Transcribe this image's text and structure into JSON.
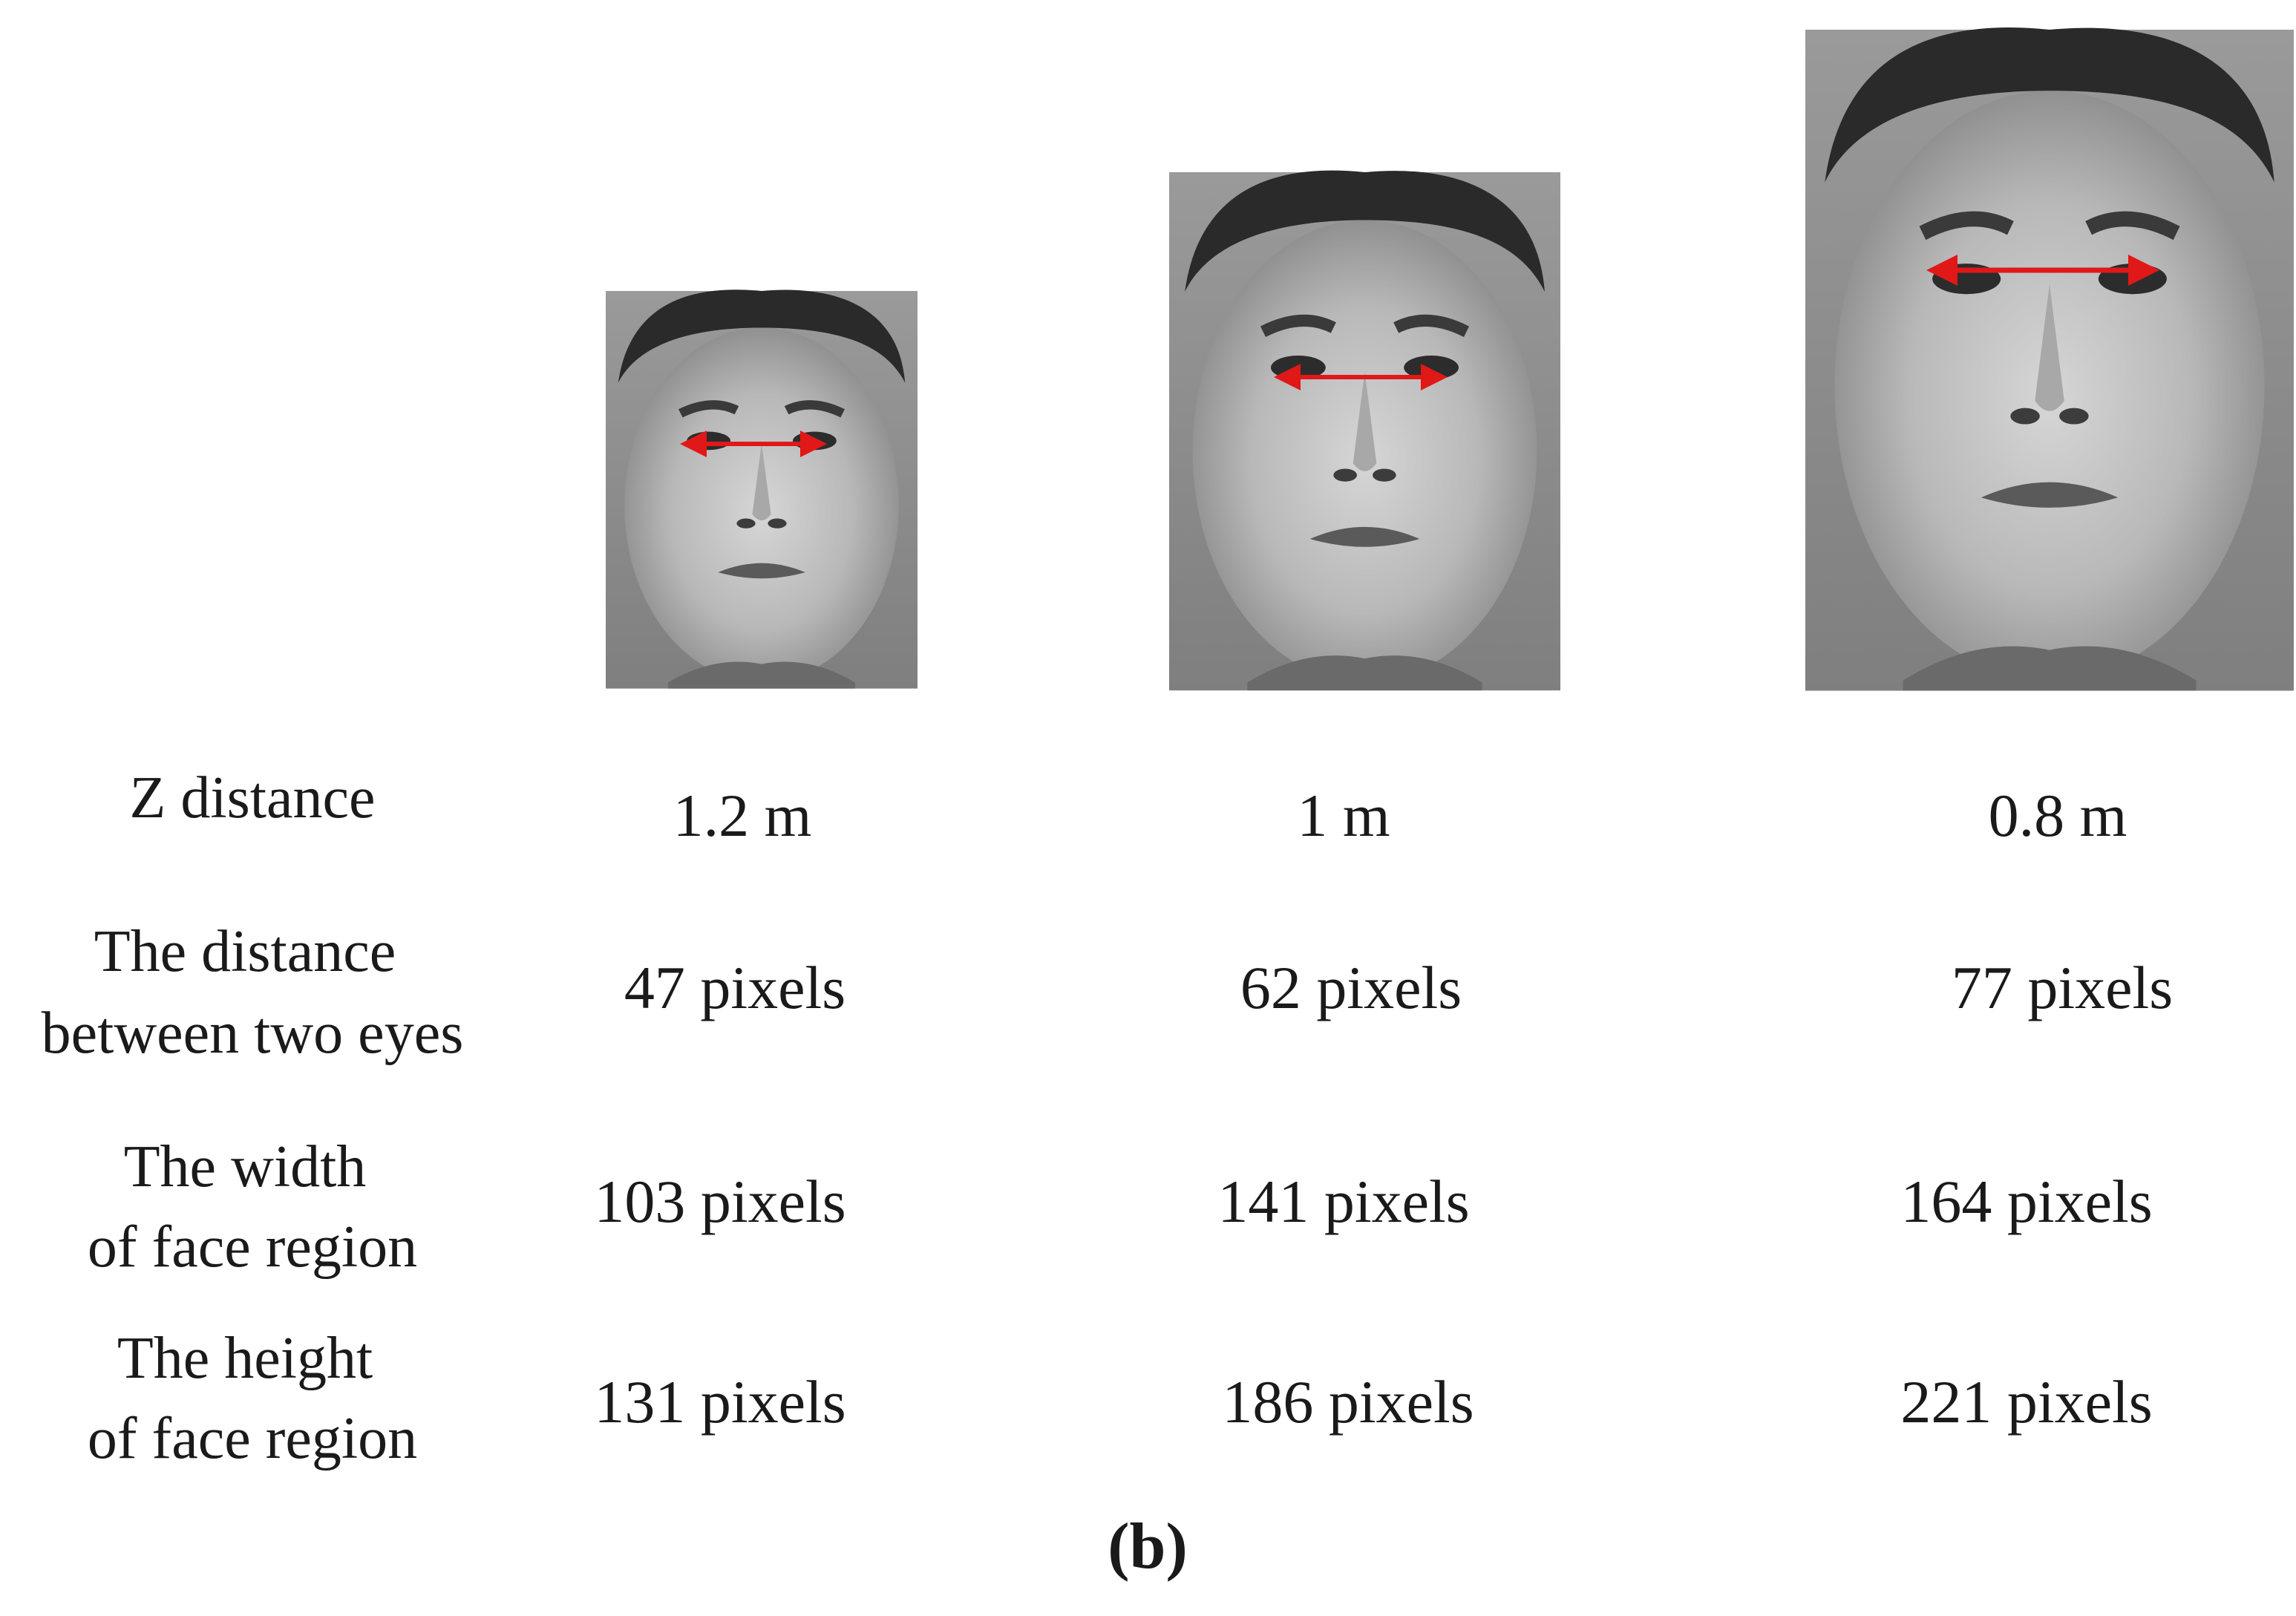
{
  "figure": {
    "panel_label": "(b)",
    "row_labels": {
      "z_distance": "Z distance",
      "eye_distance_line1": "The distance",
      "eye_distance_line2": "between two eyes",
      "face_width_line1": "The width",
      "face_width_line2": "of face region",
      "face_height_line1": "The height",
      "face_height_line2": "of face region"
    },
    "columns": [
      {
        "z": "1.2 m",
        "eye_distance": "47 pixels",
        "face_width": "103 pixels",
        "face_height": "131 pixels"
      },
      {
        "z": "1 m",
        "eye_distance": "62 pixels",
        "face_width": "141 pixels",
        "face_height": "186 pixels"
      },
      {
        "z": "0.8 m",
        "eye_distance": "77 pixels",
        "face_width": "164 pixels",
        "face_height": "221 pixels"
      }
    ],
    "photos": [
      {
        "subject": "face-photo-grayscale"
      },
      {
        "subject": "face-photo-grayscale"
      },
      {
        "subject": "face-photo-grayscale"
      }
    ],
    "colors": {
      "arrow": "#e01818",
      "text": "#1a1a1a"
    }
  }
}
